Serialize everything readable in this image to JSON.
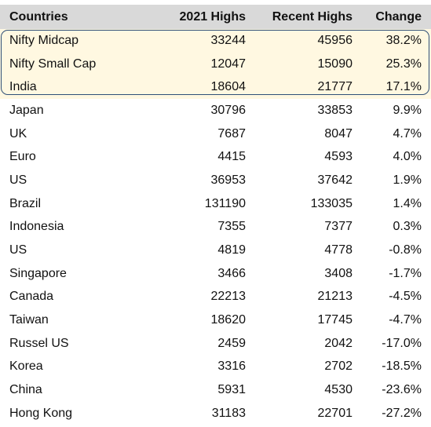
{
  "columns": {
    "country": "Countries",
    "highs_2021": "2021 Highs",
    "recent_highs": "Recent Highs",
    "change": "Change"
  },
  "rows": [
    {
      "country": "Nifty Midcap",
      "highs_2021": "33244",
      "recent_highs": "45956",
      "change": "38.2%",
      "highlighted": true
    },
    {
      "country": "Nifty Small Cap",
      "highs_2021": "12047",
      "recent_highs": "15090",
      "change": "25.3%",
      "highlighted": true
    },
    {
      "country": "India",
      "highs_2021": "18604",
      "recent_highs": "21777",
      "change": "17.1%",
      "highlighted": true
    },
    {
      "country": "Japan",
      "highs_2021": "30796",
      "recent_highs": "33853",
      "change": "9.9%"
    },
    {
      "country": "UK",
      "highs_2021": "7687",
      "recent_highs": "8047",
      "change": "4.7%"
    },
    {
      "country": "Euro",
      "highs_2021": "4415",
      "recent_highs": "4593",
      "change": "4.0%"
    },
    {
      "country": "US",
      "highs_2021": "36953",
      "recent_highs": "37642",
      "change": "1.9%"
    },
    {
      "country": "Brazil",
      "highs_2021": "131190",
      "recent_highs": "133035",
      "change": "1.4%"
    },
    {
      "country": "Indonesia",
      "highs_2021": "7355",
      "recent_highs": "7377",
      "change": "0.3%"
    },
    {
      "country": "US",
      "highs_2021": "4819",
      "recent_highs": "4778",
      "change": "-0.8%"
    },
    {
      "country": "Singapore",
      "highs_2021": "3466",
      "recent_highs": "3408",
      "change": "-1.7%"
    },
    {
      "country": "Canada",
      "highs_2021": "22213",
      "recent_highs": "21213",
      "change": "-4.5%"
    },
    {
      "country": "Taiwan",
      "highs_2021": "18620",
      "recent_highs": "17745",
      "change": "-4.7%"
    },
    {
      "country": "Russel US",
      "highs_2021": "2459",
      "recent_highs": "2042",
      "change": "-17.0%"
    },
    {
      "country": "Korea",
      "highs_2021": "3316",
      "recent_highs": "2702",
      "change": "-18.5%"
    },
    {
      "country": "China",
      "highs_2021": "5931",
      "recent_highs": "4530",
      "change": "-23.6%"
    },
    {
      "country": "Hong Kong",
      "highs_2021": "31183",
      "recent_highs": "22701",
      "change": "-27.2%"
    }
  ],
  "colors": {
    "header_bg": "#d9d9d9",
    "highlight_bg": "#fff8e1",
    "callout_border": "#2f4f77"
  }
}
